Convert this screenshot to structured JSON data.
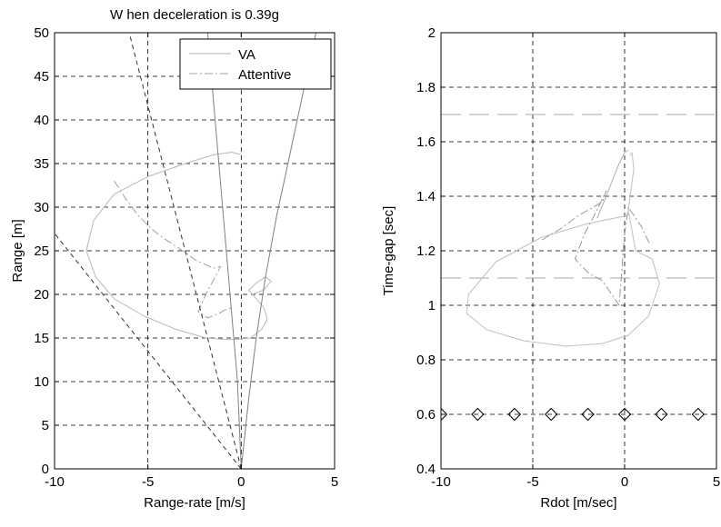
{
  "chart_data": [
    {
      "type": "line",
      "title": "W hen deceleration is 0.39g",
      "xlabel": "Range-rate [m/s]",
      "ylabel": "Range [m]",
      "xlim": [
        -10,
        5
      ],
      "ylim": [
        0,
        50
      ],
      "xticks": [
        -10,
        -5,
        0,
        5
      ],
      "yticks": [
        0,
        5,
        10,
        15,
        20,
        25,
        30,
        35,
        40,
        45,
        50
      ],
      "xtick_labels": [
        "-10",
        "-5",
        "0",
        "5"
      ],
      "ytick_labels": [
        "0",
        "5",
        "10",
        "15",
        "20",
        "25",
        "30",
        "35",
        "40",
        "45",
        "50"
      ],
      "grid": true,
      "legend": {
        "placement": "top-right",
        "entries": [
          {
            "label": "VA",
            "style": "solid",
            "color": "#b0b0b0"
          },
          {
            "label": "Attentive",
            "style": "dashdot",
            "color": "#a0a0a0"
          }
        ]
      },
      "series": [
        {
          "name": "VA",
          "color": "#b8b8b8",
          "style": "solid",
          "x": [
            0,
            -0.5,
            -1.5,
            -3,
            -5,
            -6.8,
            -7.9,
            -8.3,
            -7.8,
            -6.8,
            -5.2,
            -3.5,
            -1.9,
            -0.6,
            0.5,
            1.1,
            1.4,
            1.2,
            0.8,
            0.4,
            0.8,
            1.3,
            1.6,
            1.2,
            0.6
          ],
          "y": [
            36.0,
            36.3,
            36.0,
            35.0,
            33.5,
            31.5,
            28.5,
            25.0,
            22.0,
            19.5,
            17.5,
            16.0,
            15.0,
            14.8,
            15.0,
            16.0,
            17.2,
            18.5,
            19.5,
            20.5,
            21.3,
            22.0,
            21.5,
            20.5,
            20.0
          ]
        },
        {
          "name": "Attentive",
          "color": "#a0a0a0",
          "style": "dashdot",
          "x": [
            -6.8,
            -6.2,
            -5.5,
            -4.8,
            -4.2,
            -3.5,
            -3.0,
            -2.5,
            -2.0,
            -1.5,
            -1.1,
            -1.4,
            -1.9,
            -2.3,
            -1.8,
            -1.2,
            -0.9,
            -0.4
          ],
          "y": [
            33.0,
            31.0,
            29.0,
            27.5,
            26.5,
            25.5,
            24.8,
            24.0,
            23.5,
            23.0,
            23.2,
            22.0,
            20.0,
            18.0,
            17.3,
            17.8,
            18.2,
            18.5
          ]
        },
        {
          "name": "",
          "color": "#808080",
          "style": "solid",
          "x": [
            0,
            0.4,
            0.8,
            1.3,
            1.9,
            2.6,
            3.3,
            4.0
          ],
          "y": [
            0,
            8,
            15,
            22,
            29,
            36,
            43,
            50
          ]
        },
        {
          "name": "",
          "color": "#808080",
          "style": "solid",
          "x": [
            0,
            -0.2,
            -0.6,
            -1.0,
            -1.4,
            -1.8
          ],
          "y": [
            0,
            10,
            20,
            30,
            40,
            50
          ]
        },
        {
          "name": "",
          "color": "#303030",
          "style": "dashed",
          "x": [
            0,
            -6.0
          ],
          "y": [
            0,
            50
          ]
        },
        {
          "name": "",
          "color": "#303030",
          "style": "dashed",
          "x": [
            0,
            -10
          ],
          "y": [
            0,
            27
          ]
        }
      ]
    },
    {
      "type": "line",
      "title": "",
      "xlabel": "Rdot [m/sec]",
      "ylabel": "Time-gap [sec]",
      "xlim": [
        -10,
        5
      ],
      "ylim": [
        0.4,
        2
      ],
      "xticks": [
        -10,
        -5,
        0,
        5
      ],
      "yticks": [
        0.4,
        0.6,
        0.8,
        1.0,
        1.2,
        1.4,
        1.6,
        1.8,
        2.0
      ],
      "xtick_labels": [
        "-10",
        "-5",
        "0",
        "5"
      ],
      "ytick_labels": [
        "0.4",
        "0.6",
        "0.8",
        "1",
        "1.2",
        "1.4",
        "1.6",
        "1.8",
        "2"
      ],
      "grid": true,
      "series": [
        {
          "name": "",
          "color": "#a8a8a8",
          "style": "longdash",
          "x": [
            -10,
            5
          ],
          "y": [
            1.7,
            1.7
          ]
        },
        {
          "name": "",
          "color": "#a8a8a8",
          "style": "longdash",
          "x": [
            -10,
            5
          ],
          "y": [
            1.1,
            1.1
          ]
        },
        {
          "name": "",
          "color": "#c0c0c0",
          "style": "solid",
          "x": [
            0.2,
            -2,
            -4.5,
            -7,
            -8.5,
            -8.6,
            -7.5,
            -5.5,
            -3.2,
            -1.2,
            0.2,
            1.3,
            1.9,
            1.5,
            0.6,
            0.2,
            0.5,
            0.4,
            0.3
          ],
          "y": [
            1.33,
            1.3,
            1.25,
            1.16,
            1.04,
            0.97,
            0.91,
            0.87,
            0.85,
            0.86,
            0.89,
            0.96,
            1.08,
            1.17,
            1.2,
            1.35,
            1.5,
            1.56,
            1.55
          ]
        },
        {
          "name": "",
          "color": "#999999",
          "style": "dashdot",
          "x": [
            -4.5,
            -3.5,
            -2.5,
            -1.7,
            -1.2,
            -1.0,
            -1.5,
            -2.2,
            -2.7,
            -2.0,
            -1.2,
            -0.8,
            -0.3,
            0.0,
            0.2,
            0.5,
            0.9,
            1.4
          ],
          "y": [
            1.24,
            1.28,
            1.33,
            1.36,
            1.38,
            1.42,
            1.35,
            1.26,
            1.17,
            1.12,
            1.09,
            1.05,
            1.0,
            1.26,
            1.36,
            1.33,
            1.29,
            1.22
          ]
        },
        {
          "name": "",
          "color": "#b0b0b0",
          "style": "solid",
          "x": [
            -1.5,
            -1.0,
            -0.6,
            -0.3,
            0.0,
            0.2
          ],
          "y": [
            1.32,
            1.4,
            1.47,
            1.52,
            1.56,
            1.57
          ]
        },
        {
          "name": "",
          "color": "#000000",
          "style": "markers-diamond",
          "x": [
            -10,
            -8,
            -6,
            -4,
            -2,
            0,
            2,
            4
          ],
          "y": [
            0.6,
            0.6,
            0.6,
            0.6,
            0.6,
            0.6,
            0.6,
            0.6
          ]
        }
      ]
    }
  ]
}
